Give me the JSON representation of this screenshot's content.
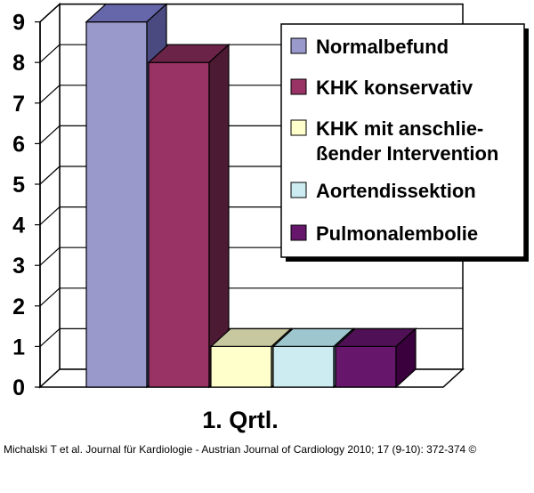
{
  "chart_data": {
    "type": "bar",
    "categories": [
      "1. Qrtl."
    ],
    "series": [
      {
        "name": "Normalbefund",
        "values": [
          9
        ],
        "color": "#9999cc",
        "side_color": "#4a4a80",
        "top_color": "#6666aa"
      },
      {
        "name": "KHK konservativ",
        "values": [
          8
        ],
        "color": "#993366",
        "side_color": "#4d1a33",
        "top_color": "#6b2447"
      },
      {
        "name": "KHK mit anschlie-\nßender Intervention",
        "values": [
          1
        ],
        "color": "#ffffcc",
        "side_color": "#7f7f66",
        "top_color": "#c8c8a0"
      },
      {
        "name": "Aortendissektion",
        "values": [
          1
        ],
        "color": "#ccecf2",
        "side_color": "#5e8a94",
        "top_color": "#9ec6ce"
      },
      {
        "name": "Pulmonalembolie",
        "values": [
          1
        ],
        "color": "#66176b",
        "side_color": "#3a003d",
        "top_color": "#4f1055"
      }
    ],
    "ylim": [
      0,
      9
    ],
    "yticks": [
      "0",
      "1",
      "2",
      "3",
      "4",
      "5",
      "6",
      "7",
      "8",
      "9"
    ],
    "grid": true,
    "legend_position": "top-right",
    "title": "",
    "xlabel": "",
    "ylabel": ""
  },
  "caption": "Michalski T et al. Journal für Kardiologie - Austrian Journal of Cardiology 2010; 17 (9-10): 372-374 ©"
}
